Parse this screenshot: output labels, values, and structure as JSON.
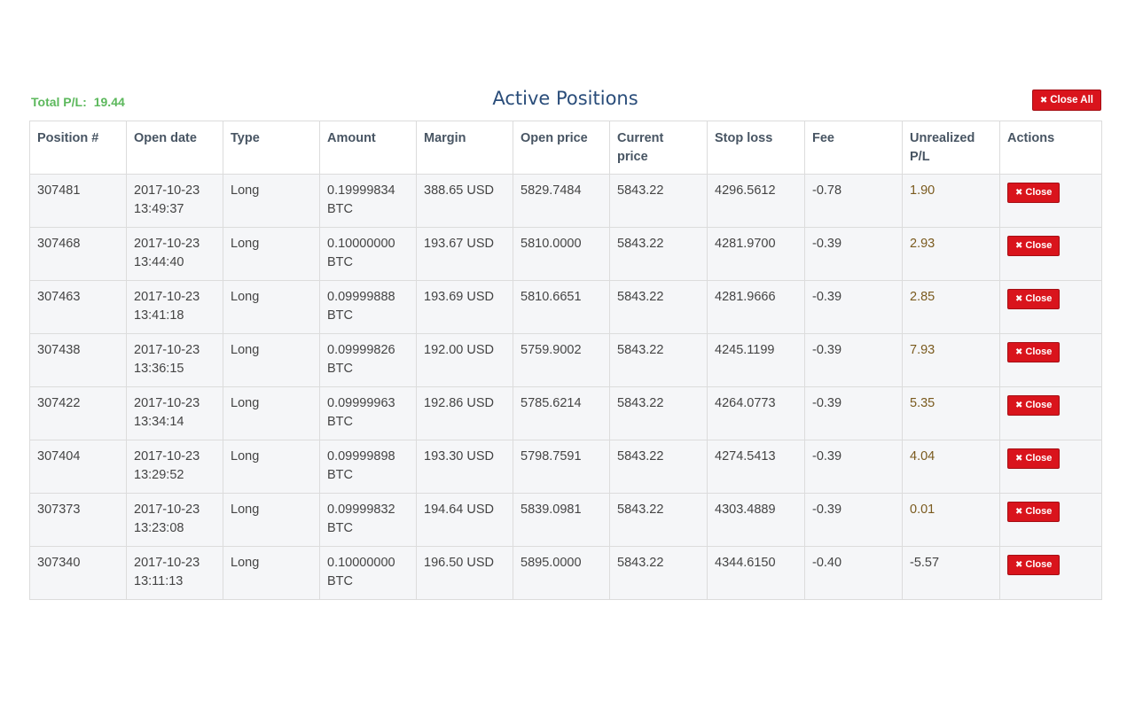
{
  "summary": {
    "total_pl_label": "Total P/L:",
    "total_pl_value": "19.44"
  },
  "title": "Active Positions",
  "close_all_label": "Close All",
  "table": {
    "headers": {
      "position": "Position #",
      "open_date": "Open date",
      "type": "Type",
      "amount": "Amount",
      "margin": "Margin",
      "open_price": "Open price",
      "current_price_1": "Current",
      "current_price_2": "price",
      "stop_loss": "Stop loss",
      "fee": "Fee",
      "unrealized_1": "Unrealized",
      "unrealized_2": "P/L",
      "actions": "Actions"
    },
    "rows": [
      {
        "position": "307481",
        "date": "2017-10-23",
        "time": "13:49:37",
        "type": "Long",
        "amount": "0.19999834",
        "unit": "BTC",
        "margin": "388.65 USD",
        "open_price": "5829.7484",
        "current_price": "5843.22",
        "stop_loss": "4296.5612",
        "fee": "-0.78",
        "pl": "1.90",
        "action": "Close"
      },
      {
        "position": "307468",
        "date": "2017-10-23",
        "time": "13:44:40",
        "type": "Long",
        "amount": "0.10000000",
        "unit": "BTC",
        "margin": "193.67 USD",
        "open_price": "5810.0000",
        "current_price": "5843.22",
        "stop_loss": "4281.9700",
        "fee": "-0.39",
        "pl": "2.93",
        "action": "Close"
      },
      {
        "position": "307463",
        "date": "2017-10-23",
        "time": "13:41:18",
        "type": "Long",
        "amount": "0.09999888",
        "unit": "BTC",
        "margin": "193.69 USD",
        "open_price": "5810.6651",
        "current_price": "5843.22",
        "stop_loss": "4281.9666",
        "fee": "-0.39",
        "pl": "2.85",
        "action": "Close"
      },
      {
        "position": "307438",
        "date": "2017-10-23",
        "time": "13:36:15",
        "type": "Long",
        "amount": "0.09999826",
        "unit": "BTC",
        "margin": "192.00 USD",
        "open_price": "5759.9002",
        "current_price": "5843.22",
        "stop_loss": "4245.1199",
        "fee": "-0.39",
        "pl": "7.93",
        "action": "Close"
      },
      {
        "position": "307422",
        "date": "2017-10-23",
        "time": "13:34:14",
        "type": "Long",
        "amount": "0.09999963",
        "unit": "BTC",
        "margin": "192.86 USD",
        "open_price": "5785.6214",
        "current_price": "5843.22",
        "stop_loss": "4264.0773",
        "fee": "-0.39",
        "pl": "5.35",
        "action": "Close"
      },
      {
        "position": "307404",
        "date": "2017-10-23",
        "time": "13:29:52",
        "type": "Long",
        "amount": "0.09999898",
        "unit": "BTC",
        "margin": "193.30 USD",
        "open_price": "5798.7591",
        "current_price": "5843.22",
        "stop_loss": "4274.5413",
        "fee": "-0.39",
        "pl": "4.04",
        "action": "Close"
      },
      {
        "position": "307373",
        "date": "2017-10-23",
        "time": "13:23:08",
        "type": "Long",
        "amount": "0.09999832",
        "unit": "BTC",
        "margin": "194.64 USD",
        "open_price": "5839.0981",
        "current_price": "5843.22",
        "stop_loss": "4303.4889",
        "fee": "-0.39",
        "pl": "0.01",
        "action": "Close"
      },
      {
        "position": "307340",
        "date": "2017-10-23",
        "time": "13:11:13",
        "type": "Long",
        "amount": "0.10000000",
        "unit": "BTC",
        "margin": "196.50 USD",
        "open_price": "5895.0000",
        "current_price": "5843.22",
        "stop_loss": "4344.6150",
        "fee": "-0.40",
        "pl": "-5.57",
        "action": "Close"
      }
    ]
  },
  "colors": {
    "total_pl": "#5cb85c",
    "title": "#2a4d7a",
    "button_red": "#d9141c",
    "pl_positive": "#7a5a1e"
  },
  "icons": {
    "close": "times-icon"
  }
}
